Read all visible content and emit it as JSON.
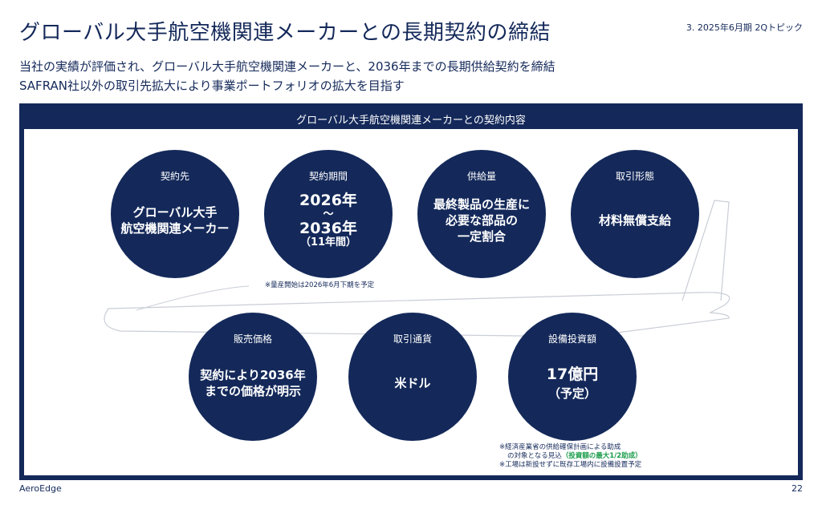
{
  "header": {
    "title": "グローバル大手航空機関連メーカーとの長期契約の締結",
    "section_tag": "3. 2025年6月期 2Qトピック"
  },
  "subtitle": {
    "line1": "当社の実績が評価され、グローバル大手航空機関連メーカーと、2036年までの長期供給契約を締結",
    "line2": "SAFRAN社以外の取引先拡大により事業ポートフォリオの拡大を目指す"
  },
  "panel": {
    "heading": "グローバル大手航空機関連メーカーとの契約内容"
  },
  "circles": {
    "partner": {
      "label": "契約先",
      "line1": "グローバル大手",
      "line2": "航空機関連メーカー"
    },
    "period": {
      "label": "契約期間",
      "start": "2026年",
      "sep": "～",
      "end": "2036年",
      "note": "（11年間）"
    },
    "supply": {
      "label": "供給量",
      "line1": "最終製品の生産に",
      "line2": "必要な部品の",
      "line3": "一定割合"
    },
    "form": {
      "label": "取引形態",
      "line1": "材料無償支給"
    },
    "price": {
      "label": "販売価格",
      "line1": "契約により2036年",
      "line2": "までの価格が明示"
    },
    "currency": {
      "label": "取引通貨",
      "line1": "米ドル"
    },
    "capex": {
      "label": "設備投資額",
      "line1": "17億円",
      "line2": "（予定）"
    }
  },
  "notes": {
    "mass_production": "※量産開始は2026年6月下期を予定",
    "subsidy_line1": "※経済産業省の供給確保計画による助成",
    "subsidy_line2a": "の対象となる見込",
    "subsidy_highlight": "（投資額の最大1/2助成）",
    "factory": "※工場は新設せずに既存工場内に設備設置予定"
  },
  "footer": {
    "logo": "AeroEdge",
    "page": "22"
  },
  "colors": {
    "navy": "#14295a",
    "highlight_green": "#1a9c4b"
  }
}
